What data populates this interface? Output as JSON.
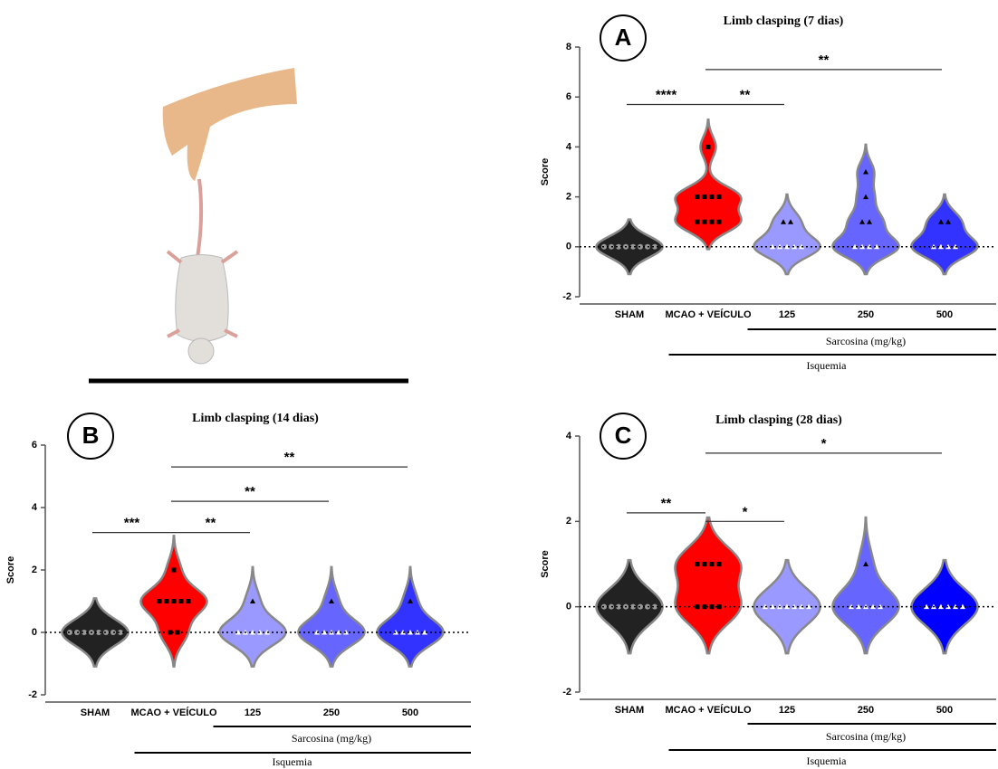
{
  "chart_data": [
    {
      "type": "violin",
      "panel": "A",
      "title": "Limb clasping (7 dias)",
      "y_label": "Score",
      "categories": [
        "SHAM",
        "MCAO + VEÍCULO",
        "125",
        "250",
        "500"
      ],
      "colors": [
        "#222222",
        "#ff0000",
        "#9999ff",
        "#6666ff",
        "#3333ff"
      ],
      "markers": [
        "circle",
        "square",
        "triangle",
        "triangle",
        "triangle"
      ],
      "groups": [
        [
          0,
          0,
          0,
          0,
          0,
          0,
          0,
          0
        ],
        [
          4,
          2,
          2,
          2,
          2,
          1,
          1,
          1,
          1
        ],
        [
          1,
          1,
          0,
          0,
          0,
          0,
          0
        ],
        [
          3,
          2,
          1,
          1,
          0,
          0,
          0,
          0
        ],
        [
          1,
          1,
          0,
          0,
          0,
          0
        ]
      ],
      "ylim": [
        -2,
        8
      ],
      "yticks": [
        -2,
        0,
        2,
        4,
        6,
        8
      ],
      "comparisons": [
        {
          "from": 0,
          "to": 1,
          "y": 5.7,
          "label": "****"
        },
        {
          "from": 1,
          "to": 2,
          "y": 5.7,
          "label": "**"
        },
        {
          "from": 1,
          "to": 4,
          "y": 7.1,
          "label": "**"
        }
      ],
      "group_labels": [
        {
          "from": 2,
          "to": 4,
          "label": "Sarcosina (mg/kg)"
        },
        {
          "from": 1,
          "to": 4,
          "label": "Isquemia"
        }
      ]
    },
    {
      "type": "violin",
      "panel": "B",
      "title": "Limb clasping (14 dias)",
      "y_label": "Score",
      "categories": [
        "SHAM",
        "MCAO + VEÍCULO",
        "125",
        "250",
        "500"
      ],
      "colors": [
        "#222222",
        "#ff0000",
        "#9999ff",
        "#6666ff",
        "#3333ff"
      ],
      "markers": [
        "circle",
        "square",
        "triangle",
        "triangle",
        "triangle"
      ],
      "groups": [
        [
          0,
          0,
          0,
          0,
          0,
          0,
          0,
          0
        ],
        [
          2,
          1,
          1,
          1,
          1,
          1,
          0,
          0
        ],
        [
          1,
          0,
          0,
          0,
          0,
          0
        ],
        [
          1,
          0,
          0,
          0,
          0,
          0
        ],
        [
          1,
          0,
          0,
          0,
          0,
          0
        ]
      ],
      "ylim": [
        -2,
        6
      ],
      "yticks": [
        -2,
        0,
        2,
        4,
        6
      ],
      "comparisons": [
        {
          "from": 0,
          "to": 1,
          "y": 3.2,
          "label": "***"
        },
        {
          "from": 1,
          "to": 2,
          "y": 3.2,
          "label": "**"
        },
        {
          "from": 1,
          "to": 3,
          "y": 4.2,
          "label": "**"
        },
        {
          "from": 1,
          "to": 4,
          "y": 5.3,
          "label": "**"
        }
      ],
      "group_labels": [
        {
          "from": 2,
          "to": 4,
          "label": "Sarcosina (mg/kg)"
        },
        {
          "from": 1,
          "to": 4,
          "label": "Isquemia"
        }
      ]
    },
    {
      "type": "violin",
      "panel": "C",
      "title": "Limb clasping (28 dias)",
      "y_label": "Score",
      "categories": [
        "SHAM",
        "MCAO + VEÍCULO",
        "125",
        "250",
        "500"
      ],
      "colors": [
        "#222222",
        "#ff0000",
        "#9999ff",
        "#6666ff",
        "#0000ff"
      ],
      "markers": [
        "circle",
        "square",
        "triangle",
        "triangle",
        "triangle"
      ],
      "groups": [
        [
          0,
          0,
          0,
          0,
          0,
          0,
          0,
          0
        ],
        [
          1,
          1,
          1,
          1,
          0,
          0,
          0,
          0
        ],
        [
          0,
          0,
          0,
          0,
          0,
          0,
          0
        ],
        [
          1,
          0,
          0,
          0,
          0,
          0
        ],
        [
          0,
          0,
          0,
          0,
          0,
          0
        ]
      ],
      "ylim": [
        -2,
        4
      ],
      "yticks": [
        -2,
        0,
        2,
        4
      ],
      "comparisons": [
        {
          "from": 0,
          "to": 1,
          "y": 2.2,
          "label": "**"
        },
        {
          "from": 1,
          "to": 2,
          "y": 2.0,
          "label": "*"
        },
        {
          "from": 1,
          "to": 4,
          "y": 3.6,
          "label": "*"
        }
      ],
      "group_labels": [
        {
          "from": 2,
          "to": 4,
          "label": "Sarcosina (mg/kg)"
        },
        {
          "from": 1,
          "to": 4,
          "label": "Isquemia"
        }
      ]
    }
  ]
}
